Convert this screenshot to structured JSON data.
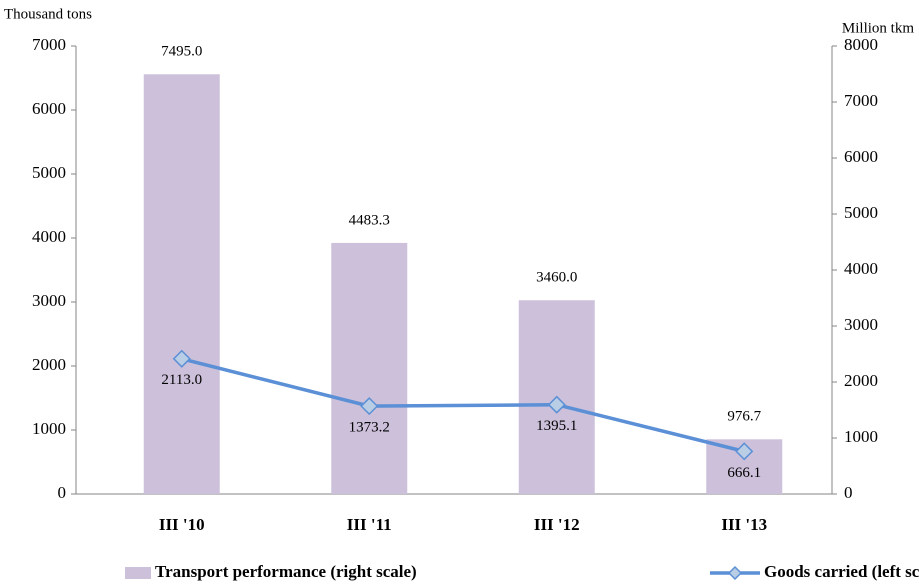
{
  "chart_data": {
    "type": "bar_line",
    "y_label": "Thousand tons",
    "y2_label": "Million tkm",
    "categories": [
      "III '10",
      "III '11",
      "III '12",
      "III '13"
    ],
    "series": [
      {
        "name": "Transport performance (right scale)",
        "type": "bar",
        "axis": "y2",
        "color": "#ccc0da",
        "values": [
          7495.0,
          4483.3,
          3460.0,
          976.7
        ],
        "value_labels": [
          "7495.0",
          "4483.3",
          "3460.0",
          "976.7"
        ]
      },
      {
        "name": "Goods carried (left scale)",
        "type": "line",
        "axis": "y",
        "color": "#5b8fd6",
        "marker_fill": "#b9cde5",
        "values": [
          2113.0,
          1373.2,
          1395.1,
          666.1
        ],
        "value_labels": [
          "2113.0",
          "1373.2",
          "1395.1",
          "666.1"
        ]
      }
    ],
    "ylim": [
      0,
      7000
    ],
    "yticks": [
      0,
      1000,
      2000,
      3000,
      4000,
      5000,
      6000,
      7000
    ],
    "y2lim": [
      0,
      8000
    ],
    "y2ticks": [
      0,
      1000,
      2000,
      3000,
      4000,
      5000,
      6000,
      7000,
      8000
    ],
    "grid": false,
    "legend": "bottom"
  }
}
